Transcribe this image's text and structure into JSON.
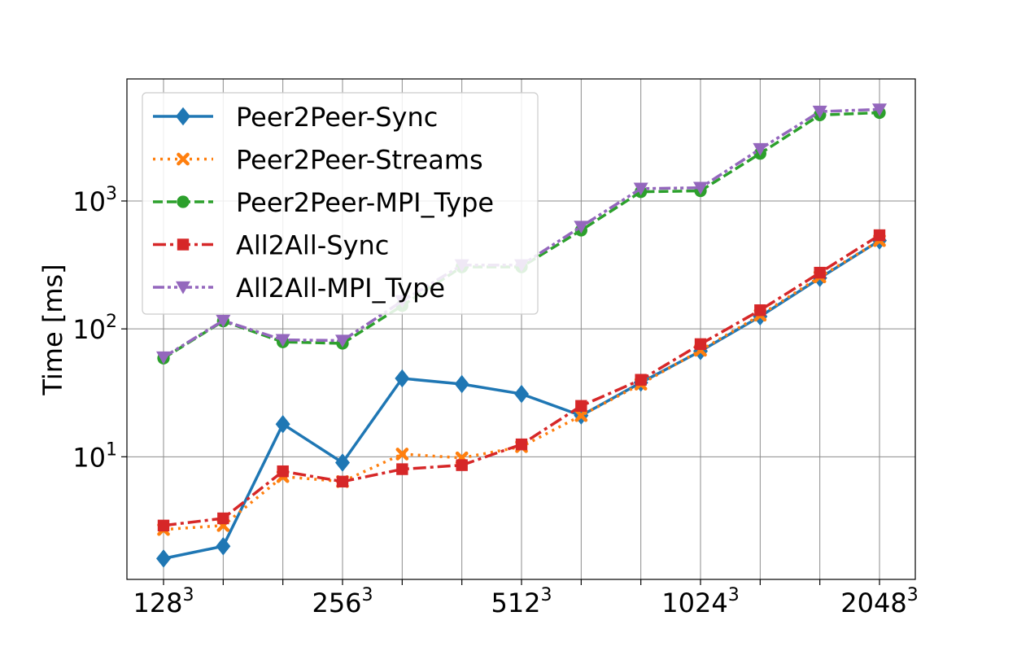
{
  "chart_data": {
    "type": "line",
    "title": "",
    "xlabel": "",
    "ylabel": "Time [ms]",
    "yscale": "log",
    "ylim": [
      1.1,
      9000
    ],
    "grid": true,
    "legend_position": "top-left",
    "x_ticks": [
      {
        "base": "128",
        "exp": "3"
      },
      {
        "base": "",
        "exp": ""
      },
      {
        "base": "",
        "exp": ""
      },
      {
        "base": "256",
        "exp": "3"
      },
      {
        "base": "",
        "exp": ""
      },
      {
        "base": "",
        "exp": ""
      },
      {
        "base": "512",
        "exp": "3"
      },
      {
        "base": "",
        "exp": ""
      },
      {
        "base": "",
        "exp": ""
      },
      {
        "base": "1024",
        "exp": "3"
      },
      {
        "base": "",
        "exp": ""
      },
      {
        "base": "",
        "exp": ""
      },
      {
        "base": "2048",
        "exp": "3"
      }
    ],
    "y_ticks": [
      {
        "value": 10,
        "base": "10",
        "exp": "1"
      },
      {
        "value": 100,
        "base": "10",
        "exp": "2"
      },
      {
        "value": 1000,
        "base": "10",
        "exp": "3"
      }
    ],
    "series": [
      {
        "name": "Peer2Peer-Sync",
        "color": "#1f77b4",
        "dash": "solid",
        "marker": "diamond",
        "values": [
          1.6,
          2.0,
          18,
          9,
          41,
          37,
          31,
          21,
          38,
          67,
          125,
          250,
          490
        ]
      },
      {
        "name": "Peer2Peer-Streams",
        "color": "#ff7f0e",
        "dash": "dotted",
        "marker": "x",
        "values": [
          2.7,
          2.9,
          7.0,
          6.4,
          10.5,
          9.8,
          12,
          21,
          37,
          68,
          128,
          255,
          490
        ]
      },
      {
        "name": "Peer2Peer-MPI_Type",
        "color": "#2ca02c",
        "dash": "dashed",
        "marker": "circle",
        "values": [
          59,
          115,
          79,
          77,
          152,
          305,
          305,
          590,
          1180,
          1200,
          2350,
          4700,
          4900
        ]
      },
      {
        "name": "All2All-Sync",
        "color": "#d62728",
        "dash": "dashdot",
        "marker": "square",
        "values": [
          2.9,
          3.3,
          7.7,
          6.4,
          8.0,
          8.6,
          12.5,
          25,
          40,
          76,
          140,
          275,
          540
        ]
      },
      {
        "name": "All2All-MPI_Type",
        "color": "#9467bd",
        "dash": "dashdotdot",
        "marker": "triangle-down",
        "values": [
          60,
          116,
          82,
          81,
          165,
          315,
          315,
          630,
          1250,
          1270,
          2550,
          5000,
          5200
        ]
      }
    ]
  }
}
